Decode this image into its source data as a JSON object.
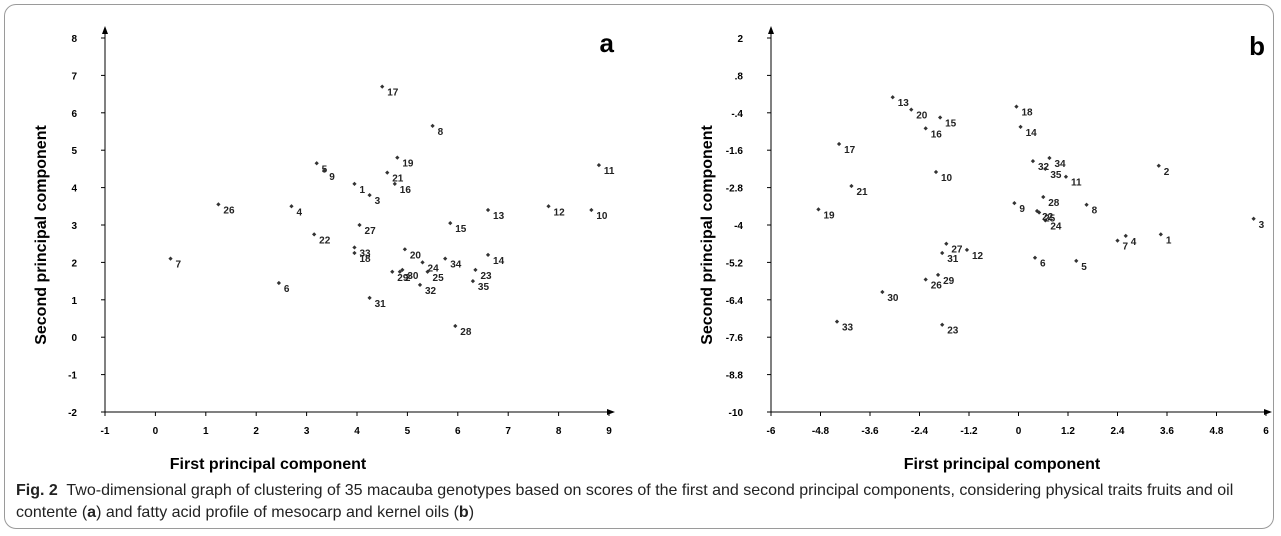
{
  "caption": {
    "fig_label": "Fig. 2",
    "text_1": "Two-dimensional graph of clustering of 35 macauba genotypes based on scores of the first and second principal components, considering physical traits fruits and oil contente (",
    "bold_a": "a",
    "text_2": ") and fatty acid profile of mesocarp and kernel oils (",
    "bold_b": "b",
    "text_3": ")"
  },
  "chart_data": [
    {
      "type": "scatter",
      "panel": "a",
      "xlabel": "First principal component",
      "ylabel": "Second principal component",
      "xlim": [
        -1,
        9
      ],
      "ylim": [
        -2,
        8
      ],
      "xticks": [
        -1,
        0,
        1,
        2,
        3,
        4,
        5,
        6,
        7,
        8,
        9
      ],
      "yticks": [
        -2,
        -1,
        0,
        1,
        2,
        3,
        4,
        5,
        6,
        7,
        8
      ],
      "grid": false,
      "points": [
        {
          "label": "1",
          "x": 3.95,
          "y": 4.1
        },
        {
          "label": "2",
          "x": 4.85,
          "y": 1.75
        },
        {
          "label": "3",
          "x": 4.25,
          "y": 3.8
        },
        {
          "label": "4",
          "x": 2.7,
          "y": 3.5
        },
        {
          "label": "5",
          "x": 3.2,
          "y": 4.65
        },
        {
          "label": "6",
          "x": 2.45,
          "y": 1.45
        },
        {
          "label": "7",
          "x": 0.3,
          "y": 2.1
        },
        {
          "label": "8",
          "x": 5.5,
          "y": 5.65
        },
        {
          "label": "9",
          "x": 3.35,
          "y": 4.45
        },
        {
          "label": "10",
          "x": 8.65,
          "y": 3.4
        },
        {
          "label": "11",
          "x": 8.8,
          "y": 4.6
        },
        {
          "label": "12",
          "x": 7.8,
          "y": 3.5
        },
        {
          "label": "13",
          "x": 6.6,
          "y": 3.4
        },
        {
          "label": "14",
          "x": 6.6,
          "y": 2.2
        },
        {
          "label": "15",
          "x": 5.85,
          "y": 3.05
        },
        {
          "label": "16",
          "x": 4.75,
          "y": 4.1
        },
        {
          "label": "17",
          "x": 4.5,
          "y": 6.7
        },
        {
          "label": "18",
          "x": 3.95,
          "y": 2.25
        },
        {
          "label": "19",
          "x": 4.8,
          "y": 4.8
        },
        {
          "label": "20",
          "x": 4.95,
          "y": 2.35
        },
        {
          "label": "21",
          "x": 4.6,
          "y": 4.4
        },
        {
          "label": "22",
          "x": 3.15,
          "y": 2.75
        },
        {
          "label": "23",
          "x": 6.35,
          "y": 1.8
        },
        {
          "label": "24",
          "x": 5.3,
          "y": 2.0
        },
        {
          "label": "25",
          "x": 5.4,
          "y": 1.75
        },
        {
          "label": "26",
          "x": 1.25,
          "y": 3.55
        },
        {
          "label": "27",
          "x": 4.05,
          "y": 3.0
        },
        {
          "label": "28",
          "x": 5.95,
          "y": 0.3
        },
        {
          "label": "29",
          "x": 4.7,
          "y": 1.75
        },
        {
          "label": "30",
          "x": 4.9,
          "y": 1.8
        },
        {
          "label": "31",
          "x": 4.25,
          "y": 1.05
        },
        {
          "label": "32",
          "x": 5.25,
          "y": 1.4
        },
        {
          "label": "33",
          "x": 3.95,
          "y": 2.4
        },
        {
          "label": "34",
          "x": 5.75,
          "y": 2.1
        },
        {
          "label": "35",
          "x": 6.3,
          "y": 1.5
        }
      ]
    },
    {
      "type": "scatter",
      "panel": "b",
      "xlabel": "First principal component",
      "ylabel": "Second principal component",
      "xlim": [
        -6,
        6
      ],
      "ylim": [
        -10,
        2
      ],
      "xticks": [
        -6,
        -4.8,
        -3.6,
        -2.4,
        -1.2,
        0,
        1.2,
        2.4,
        3.6,
        4.8,
        6
      ],
      "xtick_labels": [
        "-6",
        "-4.8",
        "-3.6",
        "-2.4",
        "-1.2",
        "0",
        "1.2",
        "2.4",
        "3.6",
        "4.8",
        "6"
      ],
      "yticks": [
        -10,
        -8.8,
        -7.6,
        -6.4,
        -5.2,
        -4,
        -2.8,
        -1.6,
        -0.4,
        0.8,
        2
      ],
      "ytick_labels": [
        "-10",
        "-8.8",
        "-7.6",
        "-6.4",
        "-5.2",
        "-4",
        "-2.8",
        "-1.6",
        "-.4",
        ".8",
        "2"
      ],
      "grid": false,
      "points": [
        {
          "label": "1",
          "x": 3.45,
          "y": -4.3
        },
        {
          "label": "2",
          "x": 3.4,
          "y": -2.1
        },
        {
          "label": "3",
          "x": 5.7,
          "y": -3.8
        },
        {
          "label": "4",
          "x": 2.6,
          "y": -4.35
        },
        {
          "label": "5",
          "x": 1.4,
          "y": -5.15
        },
        {
          "label": "6",
          "x": 0.4,
          "y": -5.05
        },
        {
          "label": "7",
          "x": 2.4,
          "y": -4.5
        },
        {
          "label": "8",
          "x": 1.65,
          "y": -3.35
        },
        {
          "label": "9",
          "x": -0.1,
          "y": -3.3
        },
        {
          "label": "10",
          "x": -2.0,
          "y": -2.3
        },
        {
          "label": "11",
          "x": 1.15,
          "y": -2.45
        },
        {
          "label": "12",
          "x": -1.25,
          "y": -4.8
        },
        {
          "label": "13",
          "x": -3.05,
          "y": 0.1
        },
        {
          "label": "14",
          "x": 0.05,
          "y": -0.85
        },
        {
          "label": "15",
          "x": -1.9,
          "y": -0.55
        },
        {
          "label": "16",
          "x": -2.25,
          "y": -0.9
        },
        {
          "label": "17",
          "x": -4.35,
          "y": -1.4
        },
        {
          "label": "18",
          "x": -0.05,
          "y": -0.2
        },
        {
          "label": "19",
          "x": -4.85,
          "y": -3.5
        },
        {
          "label": "20",
          "x": -2.6,
          "y": -0.3
        },
        {
          "label": "21",
          "x": -4.05,
          "y": -2.75
        },
        {
          "label": "22",
          "x": 0.45,
          "y": -3.55
        },
        {
          "label": "23",
          "x": -1.85,
          "y": -7.2
        },
        {
          "label": "24",
          "x": 0.65,
          "y": -3.85
        },
        {
          "label": "25",
          "x": 0.5,
          "y": -3.6
        },
        {
          "label": "26",
          "x": -2.25,
          "y": -5.75
        },
        {
          "label": "27",
          "x": -1.75,
          "y": -4.6
        },
        {
          "label": "28",
          "x": 0.6,
          "y": -3.1
        },
        {
          "label": "29",
          "x": -1.95,
          "y": -5.6
        },
        {
          "label": "30",
          "x": -3.3,
          "y": -6.15
        },
        {
          "label": "31",
          "x": -1.85,
          "y": -4.9
        },
        {
          "label": "32",
          "x": 0.35,
          "y": -1.95
        },
        {
          "label": "33",
          "x": -4.4,
          "y": -7.1
        },
        {
          "label": "34",
          "x": 0.75,
          "y": -1.85
        },
        {
          "label": "35",
          "x": 0.65,
          "y": -2.2
        }
      ]
    }
  ]
}
